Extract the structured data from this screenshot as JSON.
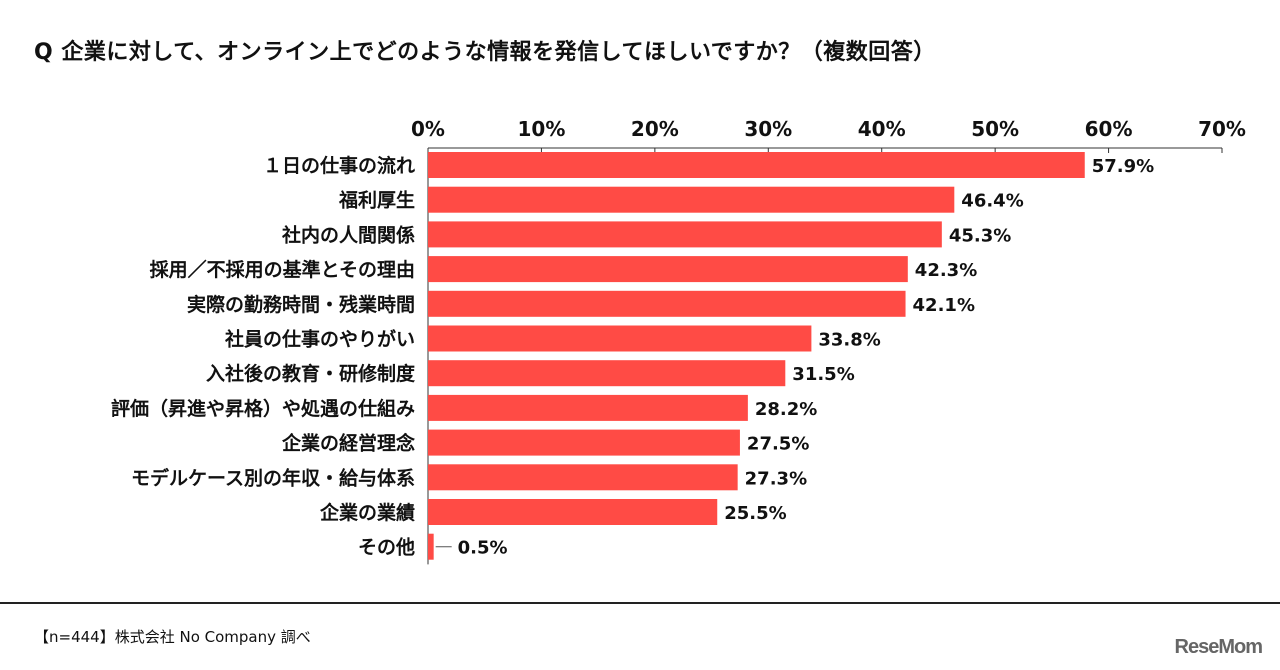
{
  "chart_data": {
    "type": "bar",
    "orientation": "horizontal",
    "title": "Q 企業に対して、オンライン上でどのような情報を発信してほしいですか？（複数回答）",
    "categories": [
      "１日の仕事の流れ",
      "福利厚生",
      "社内の人間関係",
      "採用／不採用の基準とその理由",
      "実際の勤務時間・残業時間",
      "社員の仕事のやりがい",
      "入社後の教育・研修制度",
      "評価（昇進や昇格）や処遇の仕組み",
      "企業の経営理念",
      "モデルケース別の年収・給与体系",
      "企業の業績",
      "その他"
    ],
    "values": [
      57.9,
      46.4,
      45.3,
      42.3,
      42.1,
      33.8,
      31.5,
      28.2,
      27.5,
      27.3,
      25.5,
      0.5
    ],
    "value_labels": [
      "57.9%",
      "46.4%",
      "45.3%",
      "42.3%",
      "42.1%",
      "33.8%",
      "31.5%",
      "28.2%",
      "27.5%",
      "27.3%",
      "25.5%",
      "0.5%"
    ],
    "xlim": [
      0,
      70
    ],
    "xticks": [
      0,
      10,
      20,
      30,
      40,
      50,
      60,
      70
    ],
    "xtick_labels": [
      "0%",
      "10%",
      "20%",
      "30%",
      "40%",
      "50%",
      "60%",
      "70%"
    ],
    "axis_position": "top",
    "grid": false,
    "bar_color": "#ff4b45"
  },
  "footer": {
    "note": "【n=444】株式会社 No Company 調べ",
    "logo": "ReseMom"
  }
}
